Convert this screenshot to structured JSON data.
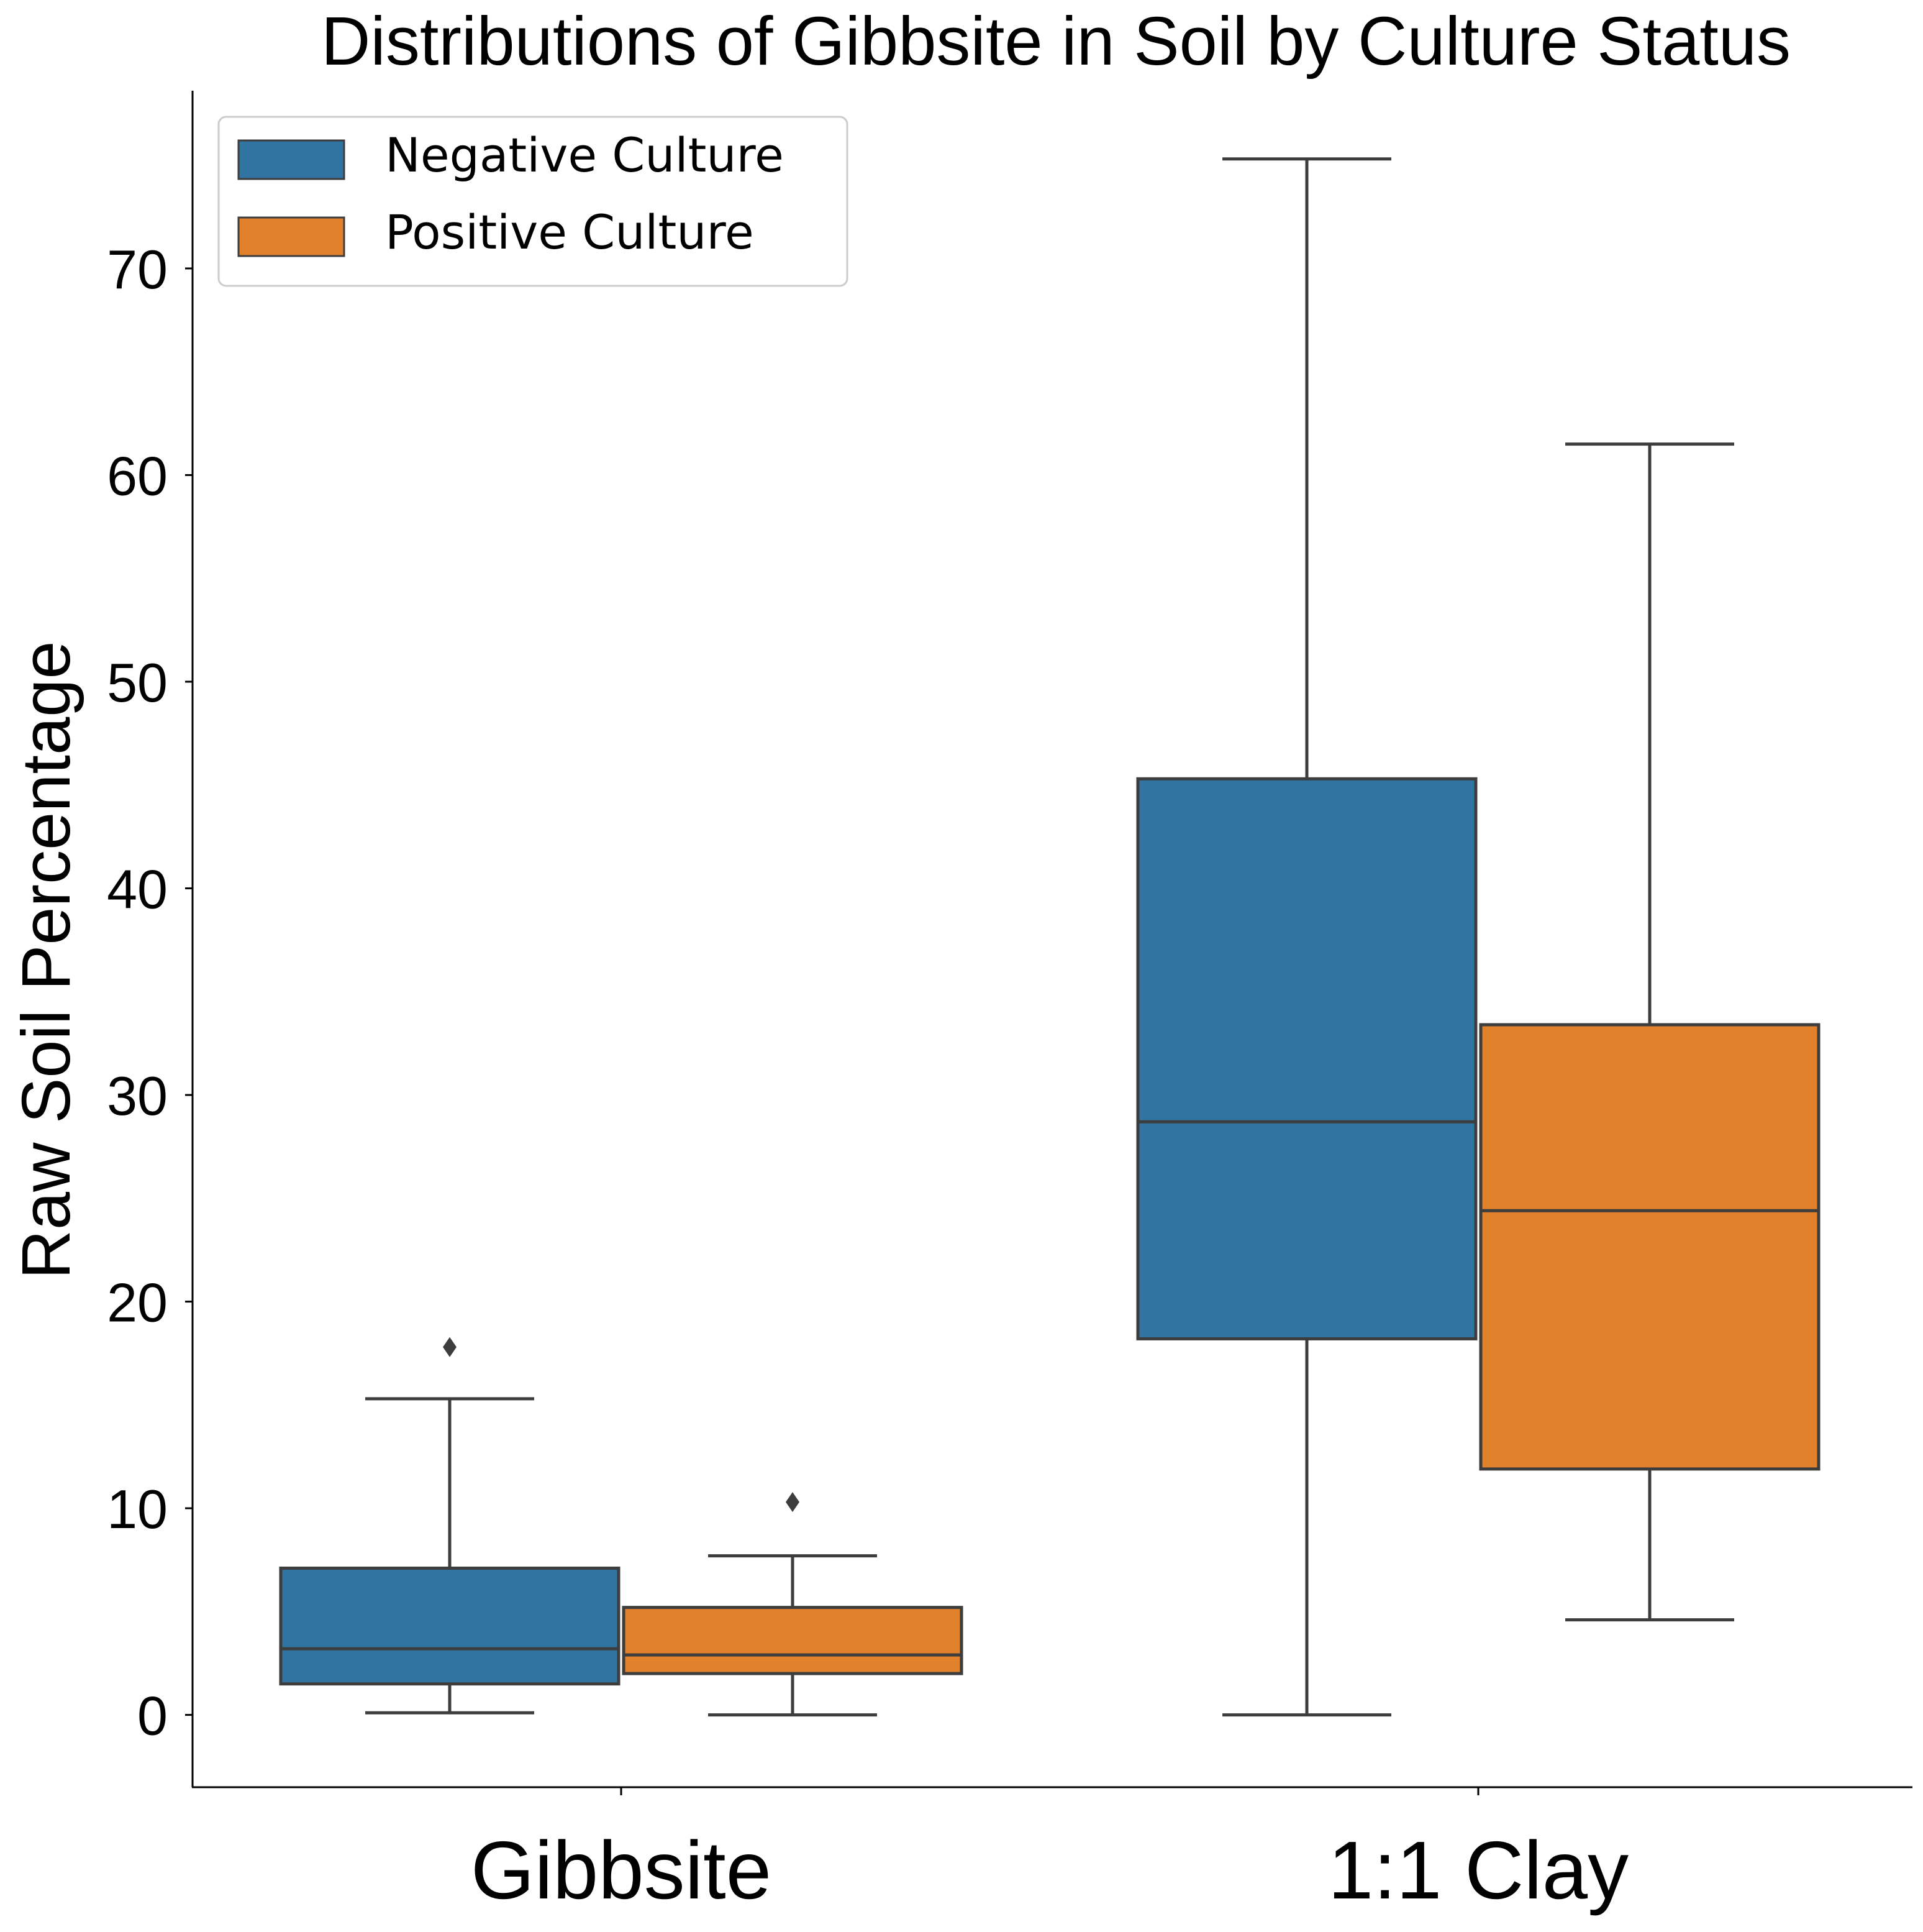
{
  "chart_data": {
    "type": "box",
    "title": "Distributions of Gibbsite in Soil by Culture Status",
    "xlabel": "",
    "ylabel": "Raw Soil Percentage",
    "ylim": [
      -3.5,
      78.6
    ],
    "yticks": [
      0,
      10,
      20,
      30,
      40,
      50,
      60,
      70
    ],
    "ytick_labels": [
      "0",
      "10",
      "20",
      "30",
      "40",
      "50",
      "60",
      "70"
    ],
    "categories": [
      "Gibbsite",
      "1:1 Clay"
    ],
    "grid": false,
    "legend_position": "top-left",
    "series": [
      {
        "name": "Negative Culture",
        "color": "#3274a1",
        "boxes": [
          {
            "category": "Gibbsite",
            "whisker_low": 0.1,
            "q1": 1.5,
            "median": 3.2,
            "q3": 7.1,
            "whisker_high": 15.3,
            "outliers": [
              17.8
            ]
          },
          {
            "category": "1:1 Clay",
            "whisker_low": 0.0,
            "q1": 18.2,
            "median": 28.7,
            "q3": 45.3,
            "whisker_high": 75.3,
            "outliers": []
          }
        ]
      },
      {
        "name": "Positive Culture",
        "color": "#e1812c",
        "boxes": [
          {
            "category": "Gibbsite",
            "whisker_low": 0.0,
            "q1": 2.0,
            "median": 2.9,
            "q3": 5.2,
            "whisker_high": 7.7,
            "outliers": [
              10.3
            ]
          },
          {
            "category": "1:1 Clay",
            "whisker_low": 4.6,
            "q1": 11.9,
            "median": 24.4,
            "q3": 33.4,
            "whisker_high": 61.5,
            "outliers": []
          }
        ]
      }
    ]
  }
}
